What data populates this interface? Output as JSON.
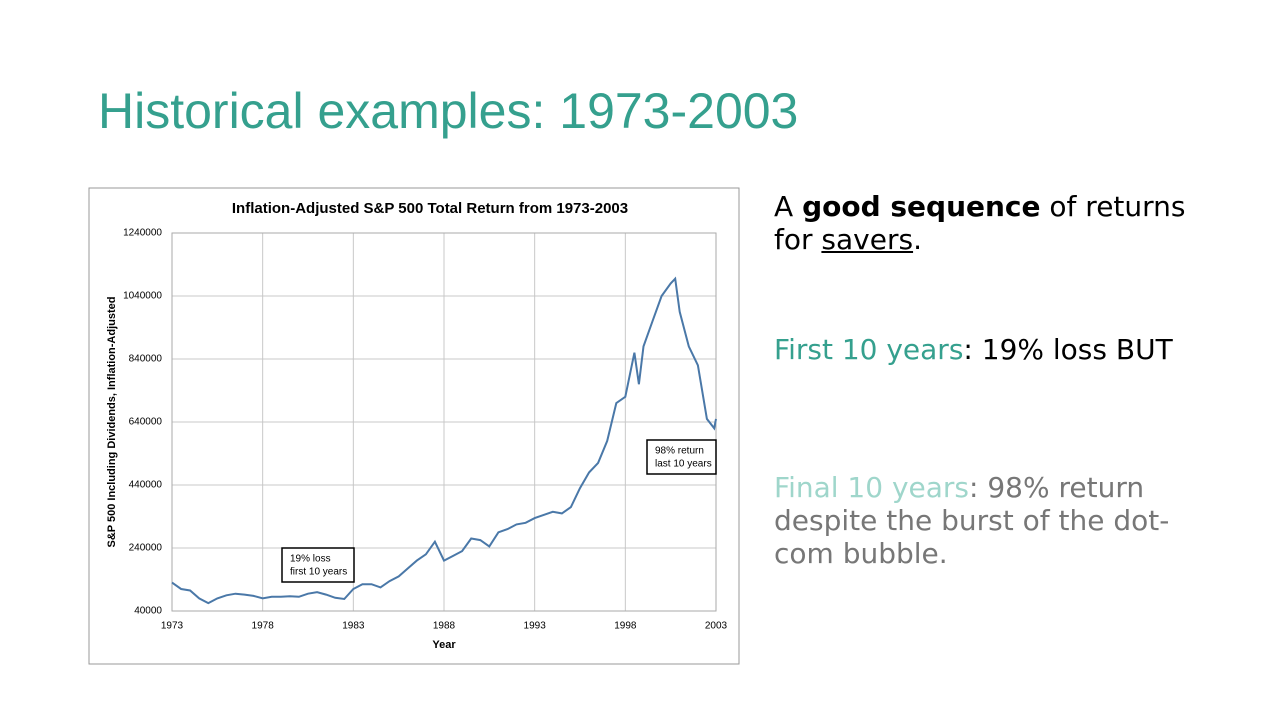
{
  "slide_title": "Historical examples: 1973-2003",
  "chart_data": {
    "type": "line",
    "title": "Inflation-Adjusted S&P 500 Total Return from 1973-2003",
    "x_label": "Year",
    "y_label": "S&P 500 Including Dividends, Inflation-Adjusted",
    "x": [
      1973,
      1973.5,
      1974,
      1974.5,
      1975,
      1975.5,
      1976,
      1976.5,
      1977,
      1977.5,
      1978,
      1978.5,
      1979,
      1979.5,
      1980,
      1980.5,
      1981,
      1981.5,
      1982,
      1982.5,
      1983,
      1983.5,
      1984,
      1984.5,
      1985,
      1985.5,
      1986,
      1986.5,
      1987,
      1987.5,
      1988,
      1988.5,
      1989,
      1989.5,
      1990,
      1990.5,
      1991,
      1991.5,
      1992,
      1992.5,
      1993,
      1993.5,
      1994,
      1994.5,
      1995,
      1995.5,
      1996,
      1996.5,
      1997,
      1997.5,
      1998,
      1998.5,
      1998.75,
      1999,
      1999.5,
      2000,
      2000.5,
      2000.75,
      2001,
      2001.5,
      2002,
      2002.5,
      2002.9,
      2003
    ],
    "values": [
      130000,
      110000,
      105000,
      80000,
      65000,
      80000,
      90000,
      95000,
      92000,
      88000,
      80000,
      85000,
      85000,
      87000,
      85000,
      95000,
      100000,
      92000,
      82000,
      78000,
      110000,
      125000,
      125000,
      115000,
      135000,
      150000,
      175000,
      200000,
      220000,
      260000,
      200000,
      215000,
      230000,
      270000,
      265000,
      245000,
      290000,
      300000,
      315000,
      320000,
      335000,
      345000,
      355000,
      350000,
      370000,
      430000,
      480000,
      510000,
      580000,
      700000,
      720000,
      860000,
      760000,
      880000,
      960000,
      1040000,
      1080000,
      1095000,
      990000,
      880000,
      820000,
      650000,
      620000,
      650000
    ],
    "color": "#4a78a8",
    "xlim": [
      1973,
      2003
    ],
    "xticks": [
      1973,
      1978,
      1983,
      1988,
      1993,
      1998,
      2003
    ],
    "ylim": [
      40000,
      1240000
    ],
    "yticks": [
      40000,
      240000,
      440000,
      640000,
      840000,
      1040000,
      1240000
    ],
    "grid": true,
    "annotations": [
      [
        "19% loss",
        "first 10 years"
      ],
      [
        "98% return",
        "last 10 years"
      ]
    ]
  },
  "text": {
    "p1": [
      "A ",
      "good sequence",
      " of returns for ",
      "savers",
      "."
    ],
    "p2": [
      "First 10 years",
      ": 19% loss BUT"
    ],
    "p3": [
      "Final 10 years",
      ": 98% return despite the burst of the dot-com bubble."
    ]
  }
}
